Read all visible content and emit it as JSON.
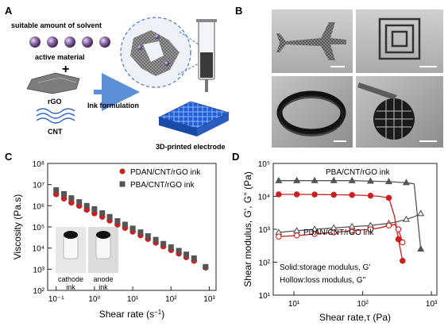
{
  "panel_a": {
    "label": "A",
    "solvent": "suitable amount of solvent",
    "active": "active material",
    "plus": "+",
    "rgo": "rGO",
    "cnt": "CNT",
    "ink_formulation": "Ink formulation",
    "printed": "3D-printed electrode"
  },
  "panel_b": {
    "label": "B"
  },
  "panel_c": {
    "label": "C",
    "inset_left": [
      "cathode",
      "ink"
    ],
    "inset_right": [
      "anode",
      "ink"
    ]
  },
  "panel_d": {
    "label": "D",
    "note_solid": "Solid:storage modulus, G'",
    "note_hollow": "Hollow:loss modulus, G''"
  },
  "chart_data": [
    {
      "type": "scatter",
      "xlabel": "Shear rate (s⁻¹)",
      "ylabel": "Viscosity (Pa.s)",
      "xscale": "log",
      "yscale": "log",
      "xlim": [
        0.06,
        1500
      ],
      "ylim": [
        100,
        100000000
      ],
      "xticks": [
        "10⁻¹",
        "10⁰",
        "10¹",
        "10²",
        "10³"
      ],
      "yticks": [
        "10²",
        "10³",
        "10⁴",
        "10⁵",
        "10⁶",
        "10⁷",
        "10⁸"
      ],
      "legend_position": "top-right",
      "series": [
        {
          "name": "PDAN/CNT/rGO ink",
          "color": "#cc1f1f",
          "marker": "circle",
          "x": [
            0.1,
            0.16,
            0.25,
            0.4,
            0.63,
            1,
            1.6,
            2.5,
            4,
            6.3,
            10,
            16,
            25,
            40,
            63,
            100,
            160,
            250,
            400,
            800
          ],
          "y": [
            3500000,
            2200000,
            1400000,
            1000000,
            650000,
            440000,
            300000,
            200000,
            130000,
            90000,
            60000,
            40000,
            27000,
            18000,
            12000,
            8000,
            5500,
            3700,
            2500,
            1200
          ]
        },
        {
          "name": "PBA/CNT/rGO ink",
          "color": "#555555",
          "marker": "square",
          "x": [
            0.1,
            0.16,
            0.25,
            0.4,
            0.63,
            1,
            1.6,
            2.5,
            4,
            6.3,
            10,
            16,
            25,
            40,
            63,
            100,
            160,
            250,
            400,
            800
          ],
          "y": [
            5500000,
            3600000,
            2300000,
            1500000,
            1000000,
            700000,
            450000,
            300000,
            190000,
            130000,
            85000,
            56000,
            37000,
            25000,
            16000,
            11000,
            7500,
            5000,
            3300,
            1300
          ]
        }
      ]
    },
    {
      "type": "line",
      "xlabel": "Shear rate,τ (Pa)",
      "ylabel": "Shear modulus, G' G'' (Pa)",
      "xscale": "log",
      "yscale": "log",
      "xlim": [
        5,
        1200
      ],
      "ylim": [
        10,
        100000
      ],
      "xticks": [
        "10¹",
        "10²",
        "10³"
      ],
      "yticks": [
        "10¹",
        "10²",
        "10³",
        "10⁴",
        "10⁵"
      ],
      "series": [
        {
          "name": "PBA/CNT/rGO ink",
          "color": "#555555",
          "marker": "triangle",
          "fill": "solid",
          "x": [
            6,
            8,
            11,
            15,
            20,
            28,
            38,
            52,
            70,
            95,
            130,
            175,
            240,
            320,
            430,
            560,
            700
          ],
          "y": [
            30000,
            30000,
            30000,
            30000,
            30000,
            30000,
            30000,
            30000,
            30000,
            29500,
            29000,
            28500,
            28000,
            27000,
            26000,
            24000,
            250
          ]
        },
        {
          "name": "",
          "color": "#555555",
          "marker": "triangle",
          "fill": "hollow",
          "x": [
            6,
            8,
            11,
            15,
            20,
            28,
            38,
            52,
            70,
            95,
            130,
            175,
            240,
            320,
            430,
            560,
            700
          ],
          "y": [
            800,
            850,
            900,
            950,
            1000,
            1050,
            1100,
            1150,
            1200,
            1250,
            1300,
            1400,
            1500,
            1700,
            2000,
            2400,
            3000
          ]
        },
        {
          "name": "PDAN/CNT/rGO ink",
          "color": "#cc1f1f",
          "marker": "circle",
          "fill": "solid",
          "x": [
            6,
            8,
            11,
            15,
            20,
            28,
            38,
            52,
            70,
            95,
            130,
            175,
            240,
            290,
            330,
            380
          ],
          "y": [
            11500,
            11500,
            11500,
            11500,
            11400,
            11300,
            11200,
            11100,
            11000,
            10800,
            10500,
            10000,
            9000,
            2500,
            500,
            110
          ]
        },
        {
          "name": "",
          "color": "#cc1f1f",
          "marker": "circle",
          "fill": "hollow",
          "x": [
            6,
            8,
            11,
            15,
            20,
            28,
            38,
            52,
            70,
            95,
            130,
            175,
            240,
            290,
            330,
            380
          ],
          "y": [
            600,
            620,
            650,
            680,
            720,
            760,
            800,
            850,
            900,
            950,
            1000,
            1100,
            1300,
            1400,
            1000,
            400
          ]
        }
      ]
    }
  ]
}
